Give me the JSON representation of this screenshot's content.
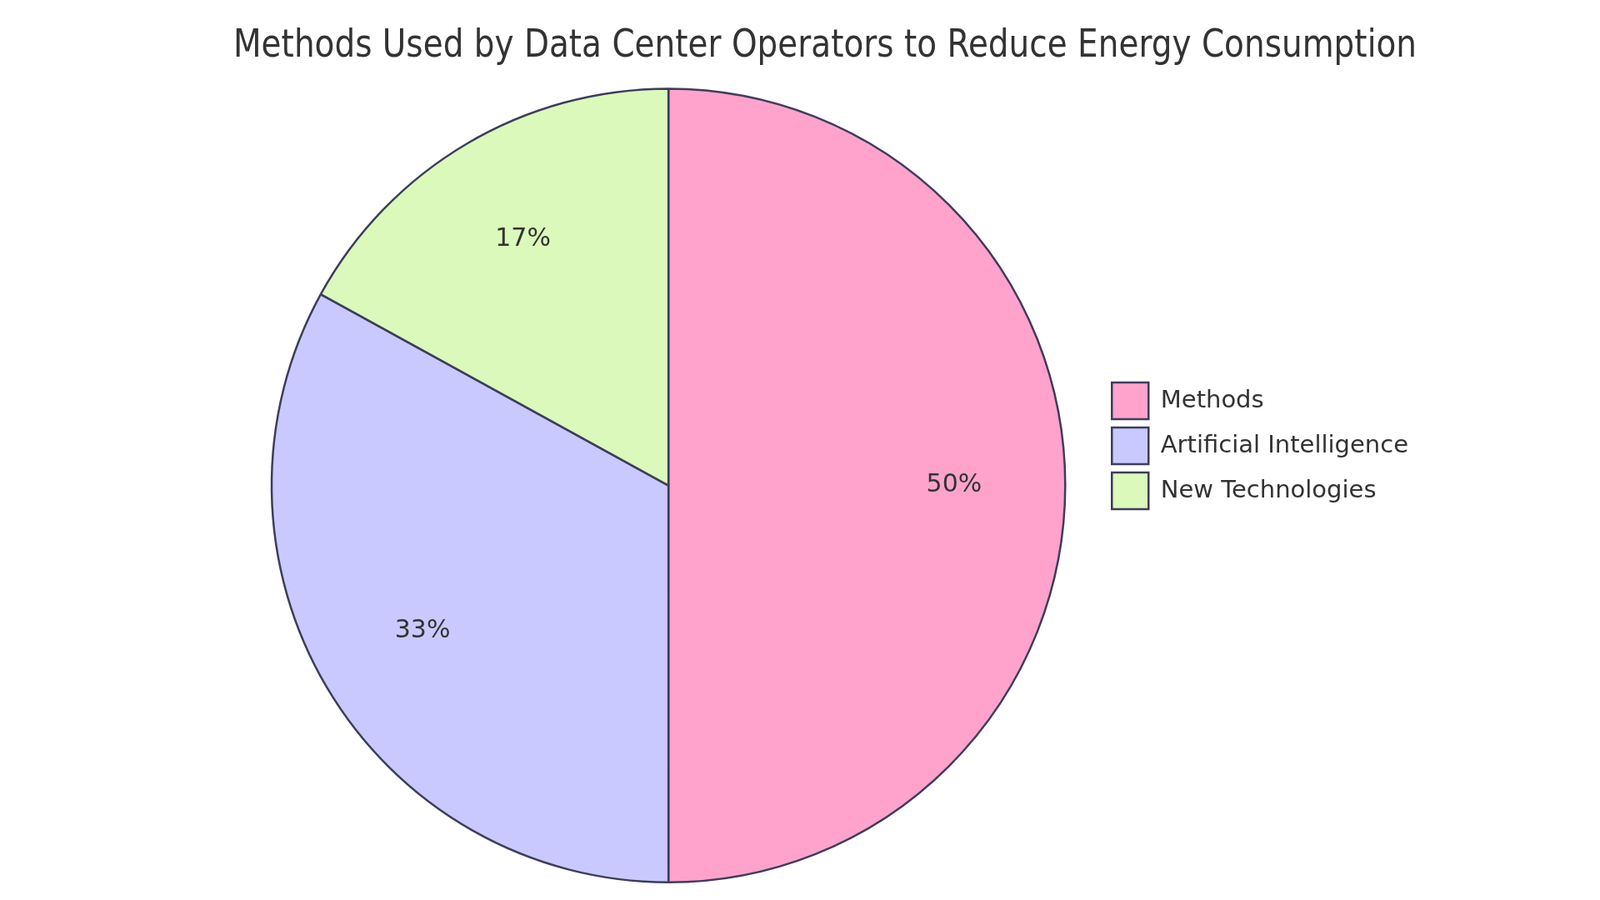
{
  "chart_data": {
    "type": "pie",
    "title": "Methods Used by Data Center Operators to Reduce Energy Consumption",
    "categories": [
      "Methods",
      "Artificial Intelligence",
      "New Technologies"
    ],
    "values": [
      50,
      33,
      17
    ],
    "value_labels": [
      "50%",
      "33%",
      "17%"
    ],
    "colors": [
      "#ffa3cd",
      "#c9c9ff",
      "#dbf9ba"
    ],
    "data_labels": true,
    "legend": "right"
  }
}
